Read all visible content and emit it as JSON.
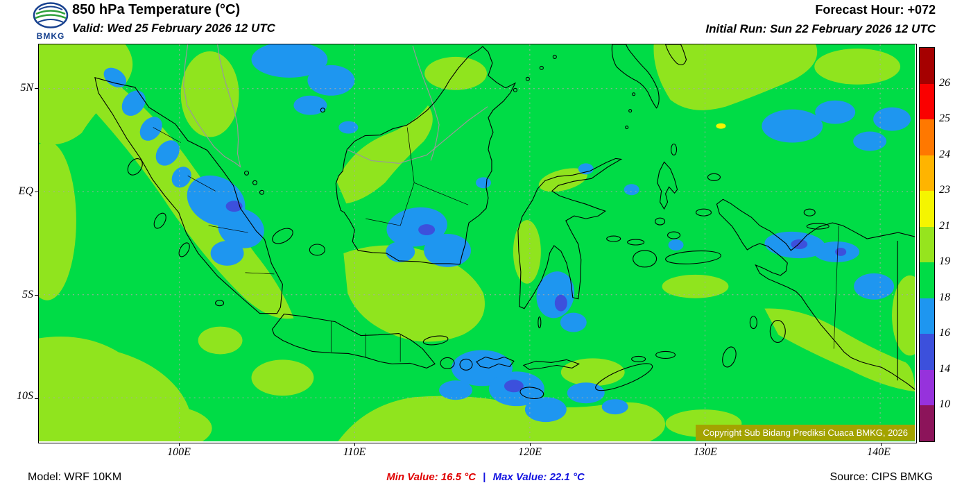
{
  "palette": {
    "map_green": "#00DC46",
    "map_light_green": "#90E41E",
    "map_blue": "#1E96F0",
    "map_dark_blue": "#3C50DC",
    "map_yellow": "#F5F500",
    "grid_gray": "#A8A8A8",
    "coast_black": "#000000",
    "foreign_gray": "#999999",
    "copyright_bg": "#A3A300",
    "min_red": "#E00000",
    "max_blue": "#1414E0"
  },
  "header": {
    "logo_text": "BMKG",
    "title": "850 hPa Temperature (°C)",
    "valid_line": "Valid: Wed 25 February 2026 12 UTC",
    "forecast_hour": "Forecast Hour: +072",
    "initial_run": "Initial Run: Sun 22 February 2026 12 UTC"
  },
  "map": {
    "lat_labels": [
      "5N",
      "EQ",
      "5S",
      "10S"
    ],
    "lon_labels": [
      "100E",
      "110E",
      "120E",
      "130E",
      "140E"
    ],
    "copyright": "Copyright Sub Bidang Prediksi Cuaca BMKG, 2026"
  },
  "colorbar": {
    "labels": [
      "26",
      "25",
      "24",
      "23",
      "21",
      "19",
      "18",
      "16",
      "14",
      "10"
    ],
    "colors": [
      "#A50000",
      "#FA0000",
      "#FF7800",
      "#FFB400",
      "#F5F500",
      "#96E41E",
      "#00DC46",
      "#1E96F0",
      "#3C50DC",
      "#9632DC",
      "#8C145A"
    ]
  },
  "footer": {
    "model": "Model: WRF 10KM",
    "min_label": "Min Value:",
    "min_value": "16.5 °C",
    "separator": "|",
    "max_label": "Max Value:",
    "max_value": "22.1 °C",
    "source": "Source: CIPS BMKG"
  }
}
